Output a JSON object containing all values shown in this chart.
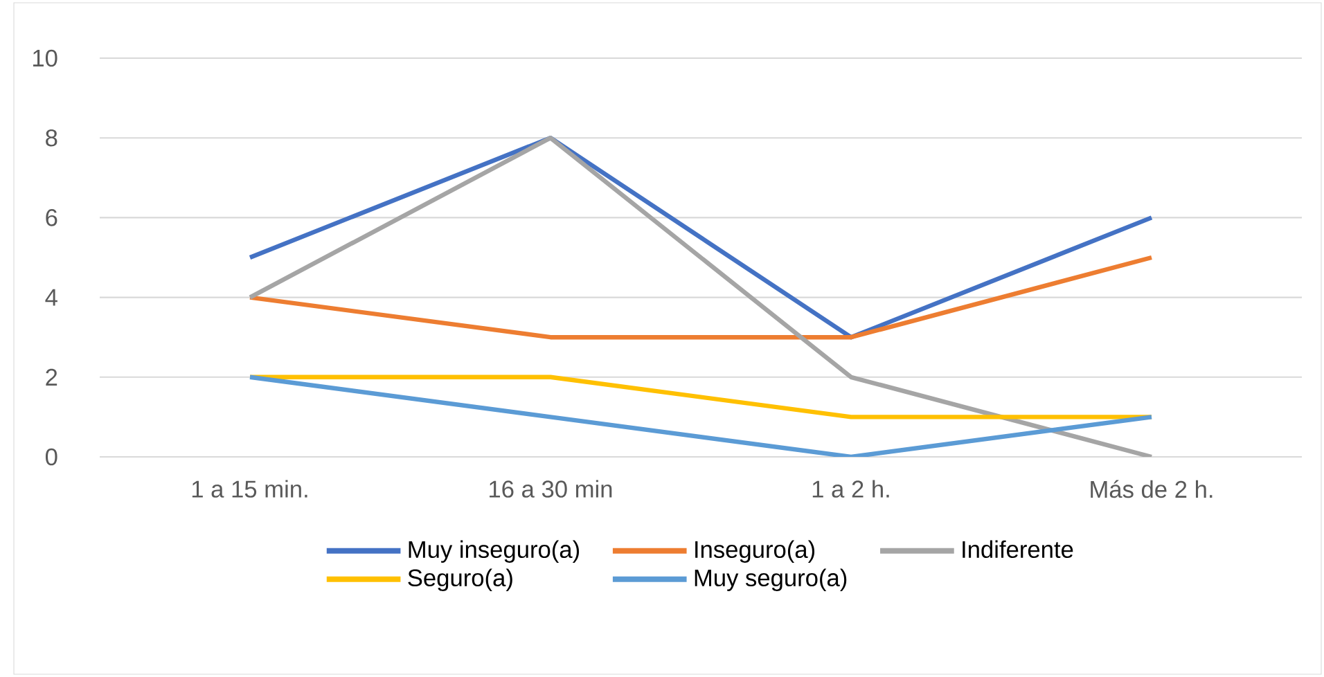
{
  "chart_data": {
    "type": "line",
    "categories": [
      "1 a 15 min.",
      "16 a 30 min",
      "1 a 2 h.",
      "Más de 2 h."
    ],
    "series": [
      {
        "name": "Muy inseguro(a)",
        "color": "#4472c4",
        "values": [
          5,
          8,
          3,
          6
        ]
      },
      {
        "name": "Inseguro(a)",
        "color": "#ed7d31",
        "values": [
          4,
          3,
          3,
          5
        ]
      },
      {
        "name": "Indiferente",
        "color": "#a5a5a5",
        "values": [
          4,
          8,
          2,
          0
        ]
      },
      {
        "name": "Seguro(a)",
        "color": "#ffc000",
        "values": [
          2,
          2,
          1,
          1
        ]
      },
      {
        "name": "Muy seguro(a)",
        "color": "#5b9bd5",
        "values": [
          2,
          1,
          0,
          1
        ]
      }
    ],
    "ylim": [
      0,
      10
    ],
    "yticks": [
      0,
      2,
      4,
      6,
      8,
      10
    ],
    "grid": "y",
    "legend": "bottom",
    "marker": "none",
    "line_style": "solid"
  }
}
